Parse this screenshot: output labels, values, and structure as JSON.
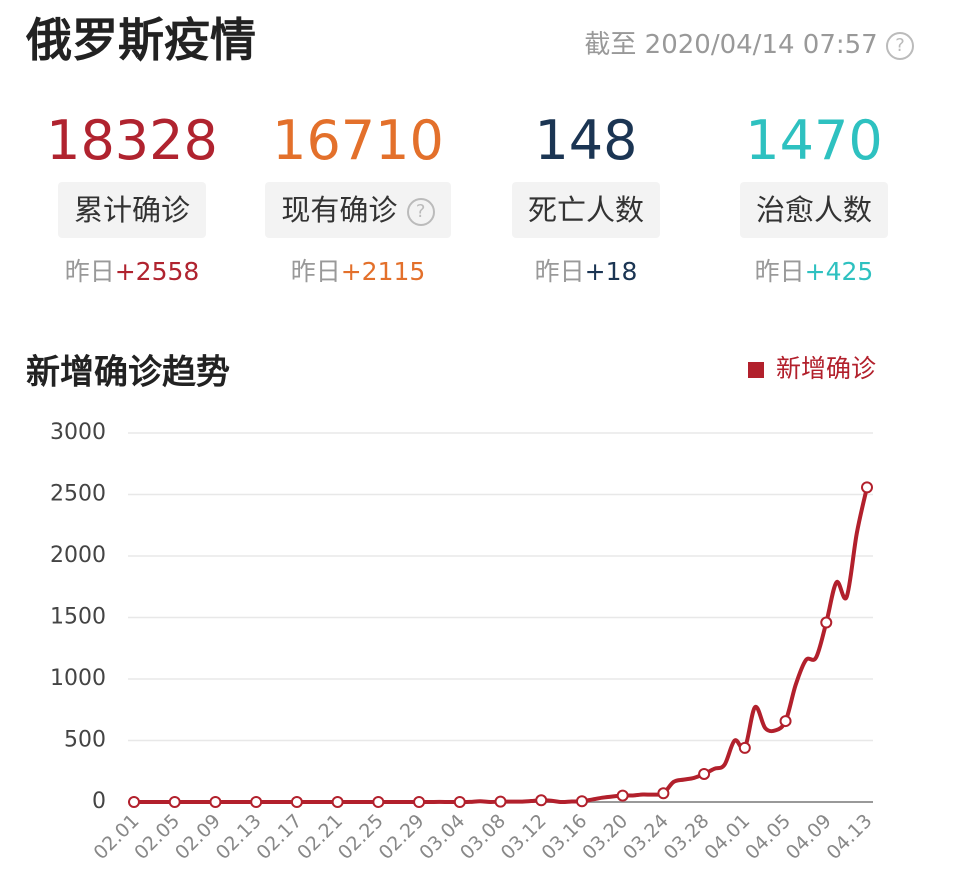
{
  "header": {
    "title": "俄罗斯疫情",
    "updated": "截至 2020/04/14 07:57"
  },
  "stats": [
    {
      "value": 18328,
      "label": "累计确诊",
      "delta_prefix": "昨日",
      "delta": "+2558",
      "color": "#b0232f"
    },
    {
      "value": 16710,
      "label": "现有确诊",
      "delta_prefix": "昨日",
      "delta": "+2115",
      "color": "#e3702b"
    },
    {
      "value": 148,
      "label": "死亡人数",
      "delta_prefix": "昨日",
      "delta": "+18",
      "color": "#1b3553"
    },
    {
      "value": 1470,
      "label": "治愈人数",
      "delta_prefix": "昨日",
      "delta": "+425",
      "color": "#2ec1c0"
    }
  ],
  "chart_data": {
    "type": "line",
    "title": "新增确诊趋势",
    "categories": [
      "02.01",
      null,
      null,
      null,
      "02.05",
      null,
      null,
      null,
      "02.09",
      null,
      null,
      null,
      "02.13",
      null,
      null,
      null,
      "02.17",
      null,
      null,
      null,
      "02.21",
      null,
      null,
      null,
      "02.25",
      null,
      null,
      null,
      "02.29",
      null,
      null,
      null,
      "03.04",
      null,
      null,
      null,
      "03.08",
      null,
      null,
      null,
      "03.12",
      null,
      null,
      null,
      "03.16",
      null,
      null,
      null,
      "03.20",
      null,
      null,
      null,
      "03.24",
      null,
      null,
      null,
      "03.28",
      null,
      null,
      null,
      "04.01",
      null,
      null,
      null,
      "04.05",
      null,
      null,
      null,
      "04.09",
      null,
      null,
      null,
      "04.13"
    ],
    "series": [
      {
        "name": "新增确诊",
        "color": "#b2202c",
        "values": [
          0,
          0,
          0,
          0,
          0,
          0,
          0,
          0,
          0,
          0,
          0,
          0,
          0,
          0,
          0,
          0,
          0,
          0,
          0,
          0,
          0,
          0,
          0,
          0,
          0,
          0,
          0,
          0,
          0,
          0,
          1,
          0,
          0,
          1,
          6,
          0,
          3,
          3,
          3,
          8,
          14,
          10,
          0,
          4,
          6,
          20,
          35,
          45,
          52,
          53,
          61,
          60,
          71,
          163,
          182,
          196,
          228,
          270,
          302,
          500,
          440,
          771,
          601,
          582,
          658,
          954,
          1154,
          1175,
          1459,
          1786,
          1667,
          2186,
          2558
        ]
      }
    ],
    "ylim": [
      0,
      3000
    ],
    "yticks": [
      0,
      500,
      1000,
      1500,
      2000,
      2500,
      3000
    ],
    "grid": true,
    "legend": "top-right"
  }
}
